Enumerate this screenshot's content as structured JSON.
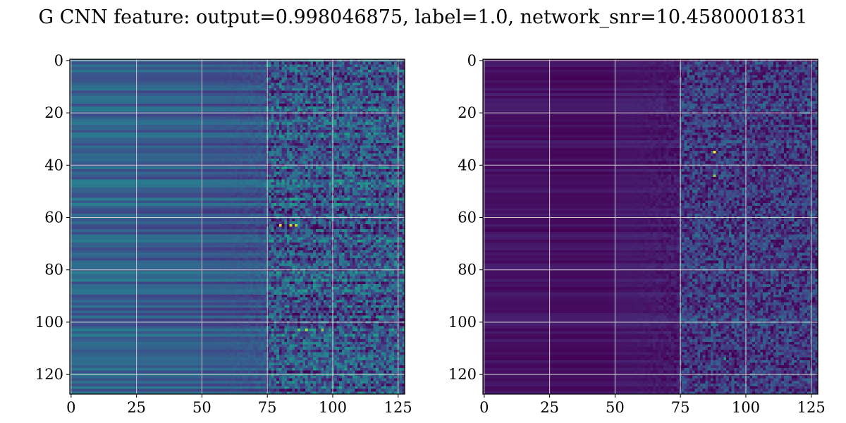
{
  "figure": {
    "title": "G CNN feature: output=0.998046875, label=1.0, network_snr=10.4580001831"
  },
  "chart_data": [
    {
      "type": "heatmap",
      "colormap": "viridis",
      "shape": [
        128,
        128
      ],
      "xlim": [
        0,
        127
      ],
      "ylim": [
        127,
        0
      ],
      "x_ticks": [
        "0",
        "25",
        "50",
        "75",
        "100",
        "125"
      ],
      "y_ticks": [
        "0",
        "20",
        "40",
        "60",
        "80",
        "100",
        "120"
      ],
      "grid": true,
      "grid_color": "#cccccc",
      "regions": [
        {
          "x_range": [
            0,
            25
          ],
          "level": 0.32
        },
        {
          "x_range": [
            25,
            50
          ],
          "level": 0.3
        },
        {
          "x_range": [
            50,
            75
          ],
          "level": 0.27
        },
        {
          "x_range": [
            75,
            127
          ],
          "level": 0.18,
          "noisy": true
        }
      ],
      "hot_spots": [
        {
          "x": 80,
          "y": 63,
          "value": 0.95
        },
        {
          "x": 84,
          "y": 63,
          "value": 0.92
        },
        {
          "x": 86,
          "y": 63,
          "value": 0.9
        },
        {
          "x": 90,
          "y": 103,
          "value": 0.85
        },
        {
          "x": 96,
          "y": 103,
          "value": 0.8
        },
        {
          "x": 87,
          "y": 103,
          "value": 0.75
        }
      ]
    },
    {
      "type": "heatmap",
      "colormap": "viridis",
      "shape": [
        128,
        128
      ],
      "xlim": [
        0,
        127
      ],
      "ylim": [
        127,
        0
      ],
      "x_ticks": [
        "0",
        "25",
        "50",
        "75",
        "100",
        "125"
      ],
      "y_ticks": [
        "0",
        "20",
        "40",
        "60",
        "80",
        "100",
        "120"
      ],
      "grid": true,
      "grid_color": "#cccccc",
      "regions": [
        {
          "x_range": [
            0,
            25
          ],
          "level": 0.05
        },
        {
          "x_range": [
            25,
            50
          ],
          "level": 0.04
        },
        {
          "x_range": [
            50,
            75
          ],
          "level": 0.07
        },
        {
          "x_range": [
            75,
            127
          ],
          "level": 0.1,
          "noisy": true
        }
      ],
      "hot_spots": [
        {
          "x": 88,
          "y": 35,
          "value": 0.98
        },
        {
          "x": 88,
          "y": 44,
          "value": 0.8
        },
        {
          "x": 87,
          "y": 95,
          "value": 0.6
        },
        {
          "x": 92,
          "y": 114,
          "value": 0.55
        }
      ]
    }
  ]
}
